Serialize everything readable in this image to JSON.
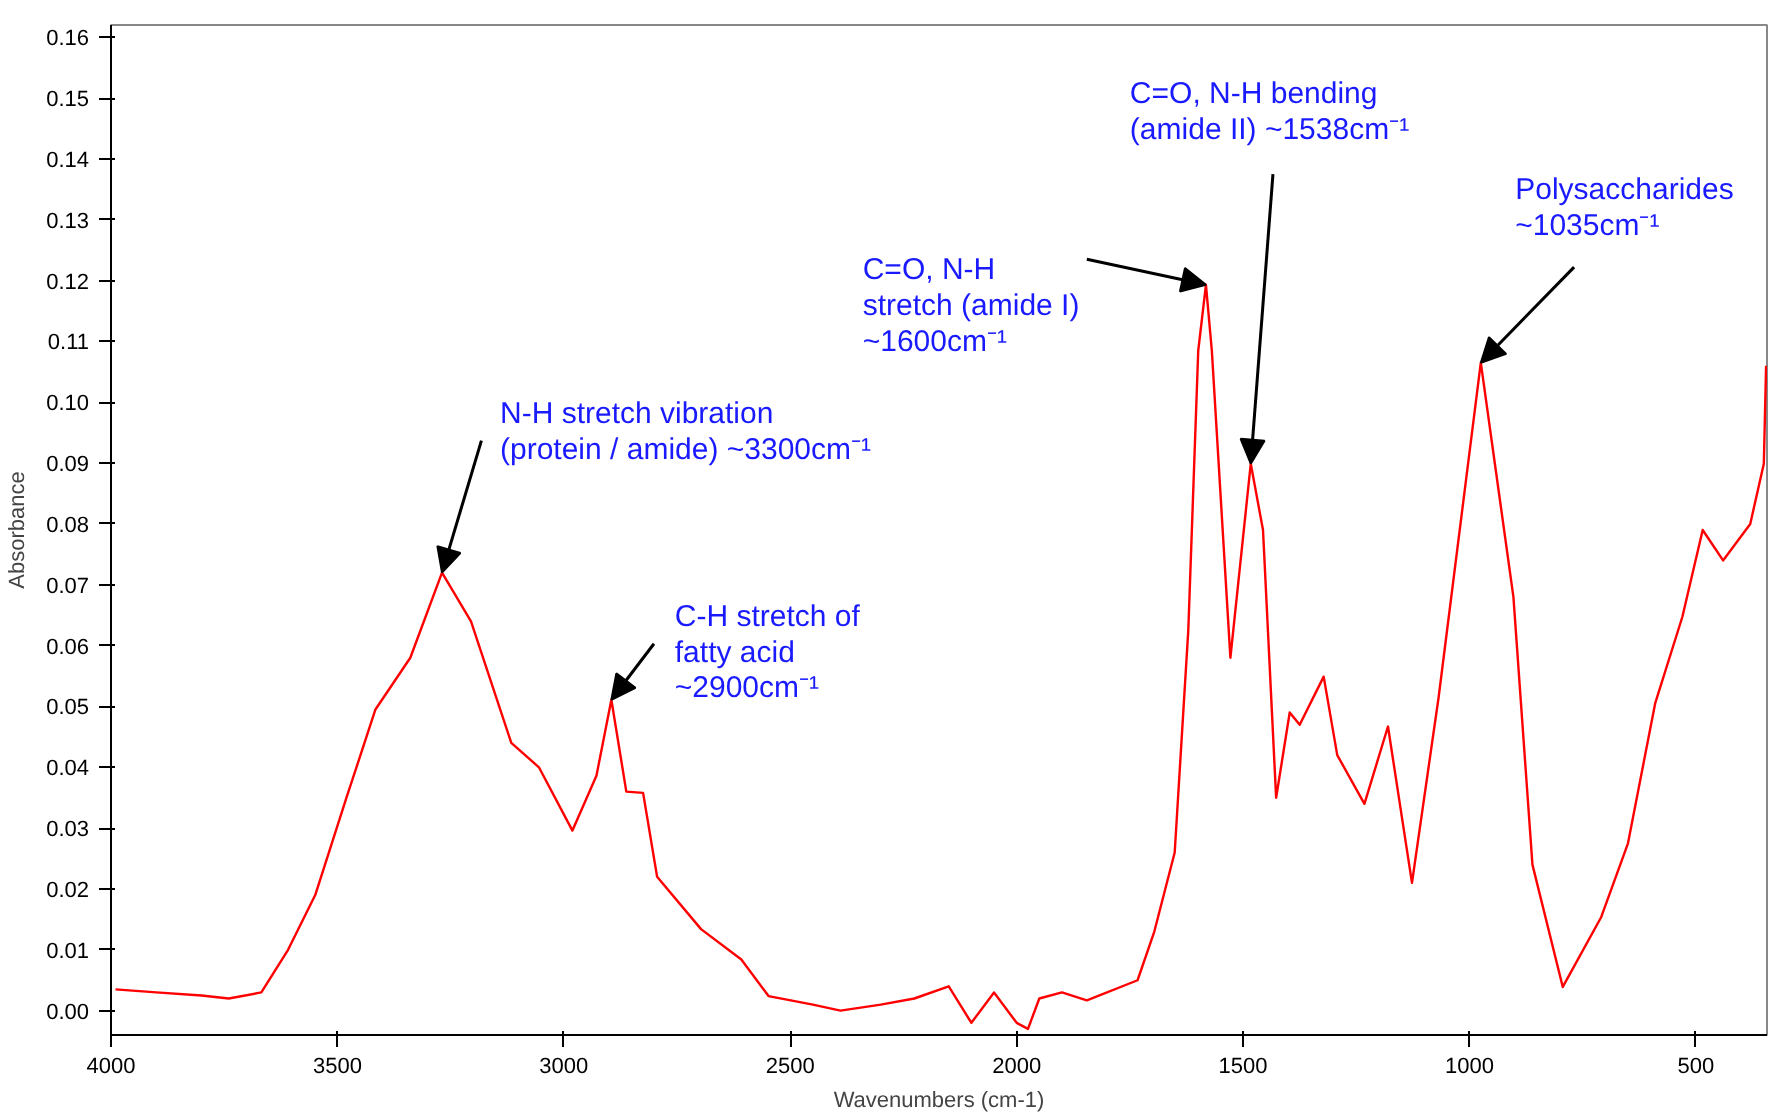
{
  "chart_data": {
    "type": "line",
    "xlabel": "Wavenumbers (cm-1)",
    "ylabel": "Absorbance",
    "xlim": [
      4000,
      343
    ],
    "ylim": [
      -0.004,
      0.162
    ],
    "xticks": [
      4000,
      3500,
      3000,
      2500,
      2000,
      1500,
      1000,
      500
    ],
    "yticks": [
      {
        "value": 0,
        "label": "0.00"
      },
      0.01,
      0.02,
      0.03,
      0.04,
      0.05,
      0.06,
      0.07,
      0.08,
      0.09,
      {
        "value": 0.1,
        "label": "0.10"
      },
      0.11,
      0.12,
      0.13,
      0.14,
      0.15,
      0.16
    ],
    "series": [
      {
        "color": "#ff0000",
        "x": [
          3990,
          3900,
          3800,
          3740,
          3668,
          3609,
          3549,
          3480,
          3416,
          3339,
          3269,
          3205,
          3116,
          3055,
          2981,
          2928,
          2895,
          2862,
          2825,
          2794,
          2697,
          2608,
          2548,
          2450,
          2389,
          2300,
          2226,
          2150,
          2100,
          2050,
          2000,
          1975,
          1950,
          1900,
          1845,
          1733,
          1696,
          1651,
          1621,
          1599,
          1582,
          1569,
          1528,
          1483,
          1456,
          1427,
          1397,
          1375,
          1322,
          1292,
          1232,
          1180,
          1127,
          1068,
          975,
          903,
          861,
          794,
          709,
          650,
          590,
          530,
          485,
          440,
          380,
          350,
          345
        ],
        "values": [
          0.0035,
          0.003,
          0.0025,
          0.002,
          0.003,
          0.01,
          0.019,
          0.035,
          0.0495,
          0.058,
          0.072,
          0.064,
          0.044,
          0.04,
          0.0296,
          0.0386,
          0.0511,
          0.036,
          0.0358,
          0.022,
          0.0134,
          0.0084,
          0.0024,
          0.001,
          0.0,
          0.001,
          0.002,
          0.004,
          -0.002,
          0.003,
          -0.002,
          -0.003,
          0.002,
          0.003,
          0.0017,
          0.005,
          0.013,
          0.026,
          0.0625,
          0.1085,
          0.1193,
          0.1085,
          0.058,
          0.0899,
          0.079,
          0.035,
          0.049,
          0.047,
          0.0549,
          0.042,
          0.034,
          0.0467,
          0.021,
          0.0516,
          0.1065,
          0.068,
          0.024,
          0.0039,
          0.0154,
          0.0275,
          0.0505,
          0.0647,
          0.079,
          0.074,
          0.08,
          0.0899,
          0.106
        ]
      }
    ],
    "annotations": [
      {
        "text": "N-H stretch vibration\n(protein / amide) ~3300cm⁻¹",
        "x": 3269,
        "y": 0.072
      },
      {
        "text": "C-H stretch of\nfatty acid\n~2900cm⁻¹",
        "x": 2895,
        "y": 0.0511
      },
      {
        "text": "C=O, N-H\nstretch (amide I)\n~1600cm⁻¹",
        "x": 1582,
        "y": 0.1193
      },
      {
        "text": "C=O, N-H bending\n(amide II) ~1538cm⁻¹",
        "x": 1483,
        "y": 0.0899
      },
      {
        "text": "Polysaccharides\n~1035cm⁻¹",
        "x": 975,
        "y": 0.1065
      }
    ]
  }
}
